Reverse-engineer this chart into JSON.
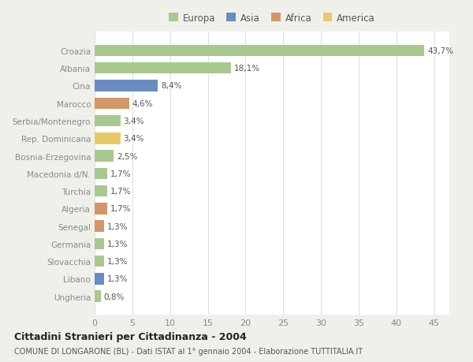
{
  "labels_clean": [
    "Croazia",
    "Albania",
    "Cina",
    "Marocco",
    "Serbia/Montenegro",
    "Rep. Dominicana",
    "Bosnia-Erzegovina",
    "Macedonia d/N.",
    "Turchia",
    "Algeria",
    "Senegal",
    "Germania",
    "Slovacchia",
    "Libano",
    "Ungheria"
  ],
  "values": [
    43.7,
    18.1,
    8.4,
    4.6,
    3.4,
    3.4,
    2.5,
    1.7,
    1.7,
    1.7,
    1.3,
    1.3,
    1.3,
    1.3,
    0.8
  ],
  "value_labels": [
    "43,7%",
    "18,1%",
    "8,4%",
    "4,6%",
    "3,4%",
    "3,4%",
    "2,5%",
    "1,7%",
    "1,7%",
    "1,7%",
    "1,3%",
    "1,3%",
    "1,3%",
    "1,3%",
    "0,8%"
  ],
  "continent": [
    "Europa",
    "Europa",
    "Asia",
    "Africa",
    "Europa",
    "America",
    "Europa",
    "Europa",
    "Europa",
    "Africa",
    "Africa",
    "Europa",
    "Europa",
    "Asia",
    "Europa"
  ],
  "colors": {
    "Europa": "#a8c890",
    "Asia": "#6b8cbe",
    "Africa": "#d4956a",
    "America": "#e8c96a"
  },
  "title": "Cittadini Stranieri per Cittadinanza - 2004",
  "subtitle": "COMUNE DI LONGARONE (BL) - Dati ISTAT al 1° gennaio 2004 - Elaborazione TUTTITALIA.IT",
  "xlim": [
    0,
    47
  ],
  "xticks": [
    0,
    5,
    10,
    15,
    20,
    25,
    30,
    35,
    40,
    45
  ],
  "background_color": "#f0f0eb",
  "plot_bg_color": "#ffffff",
  "legend_entries": [
    "Europa",
    "Asia",
    "Africa",
    "America"
  ]
}
